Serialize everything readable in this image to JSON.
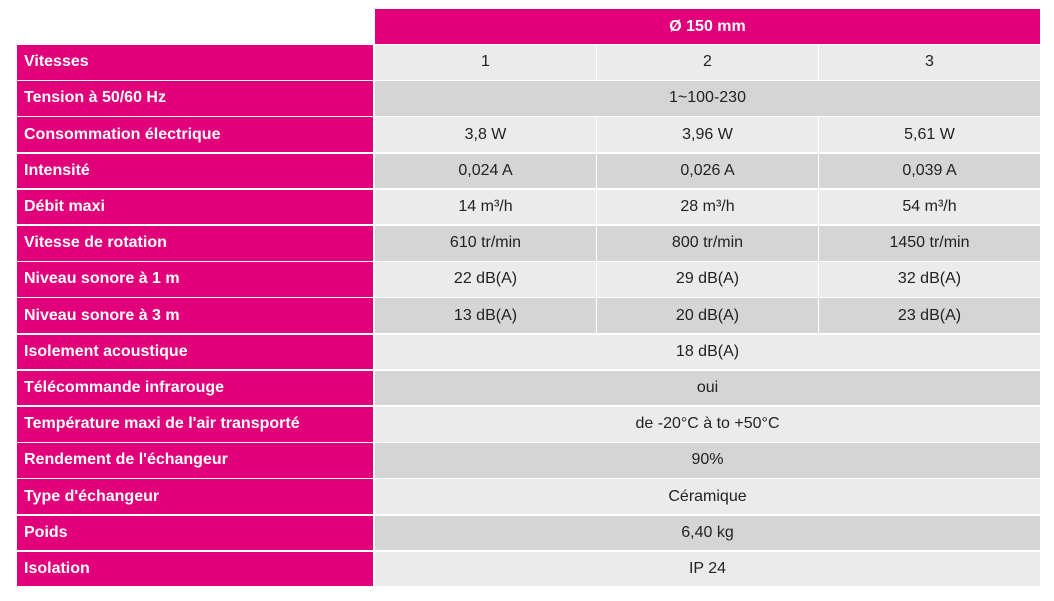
{
  "header": {
    "title": "Ø 150 mm"
  },
  "table": {
    "rows": [
      {
        "label": "Vitesses",
        "cells": [
          "1",
          "2",
          "3"
        ]
      },
      {
        "label": "Tension à 50/60 Hz",
        "cells": [
          "1~100-230"
        ]
      },
      {
        "label": "Consommation électrique",
        "cells": [
          "3,8 W",
          "3,96 W",
          "5,61 W"
        ]
      },
      {
        "label": "Intensité",
        "cells": [
          "0,024 A",
          "0,026 A",
          "0,039 A"
        ]
      },
      {
        "label": "Débit maxi",
        "cells": [
          "14 m³/h",
          "28 m³/h",
          "54 m³/h"
        ]
      },
      {
        "label": "Vitesse de rotation",
        "cells": [
          "610 tr/min",
          "800 tr/min",
          "1450 tr/min"
        ]
      },
      {
        "label": "Niveau sonore à 1 m",
        "cells": [
          "22 dB(A)",
          "29 dB(A)",
          "32 dB(A)"
        ]
      },
      {
        "label": "Niveau sonore à 3 m",
        "cells": [
          "13 dB(A)",
          "20 dB(A)",
          "23 dB(A)"
        ]
      },
      {
        "label": "Isolement acoustique",
        "cells": [
          "18 dB(A)"
        ]
      },
      {
        "label": "Télécommande infrarouge",
        "cells": [
          "oui"
        ]
      },
      {
        "label": "Température maxi de l'air transporté",
        "cells": [
          "de -20°C à to +50°C"
        ]
      },
      {
        "label": "Rendement de l'échangeur",
        "cells": [
          "90%"
        ]
      },
      {
        "label": "Type d'échangeur",
        "cells": [
          "Céramique"
        ]
      },
      {
        "label": "Poids",
        "cells": [
          "6,40 kg"
        ]
      },
      {
        "label": "Isolation",
        "cells": [
          "IP 24"
        ]
      }
    ]
  }
}
